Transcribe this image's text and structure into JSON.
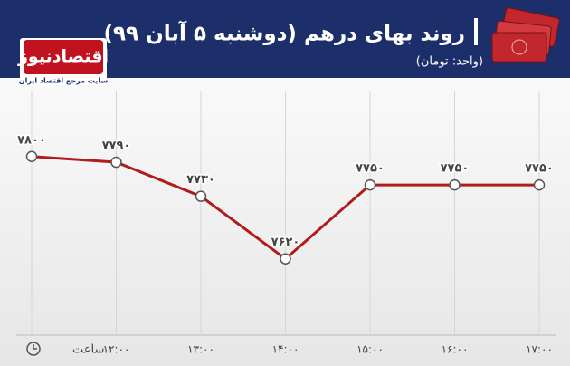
{
  "chart_data": {
    "type": "line",
    "title": "روند بهای درهم (دوشنبه ۵ آبان ۹۹)",
    "subtitle": "(واحد: تومان)",
    "brand": "اقتصادنیوز",
    "brand_tagline": "سایت مرجع اقتصاد ایران",
    "x_label": "ساعت",
    "categories": [
      null,
      "۱۲:۰۰",
      "۱۳:۰۰",
      "۱۴:۰۰",
      "۱۵:۰۰",
      "۱۶:۰۰",
      "۱۷:۰۰"
    ],
    "values": [
      7800,
      7790,
      7730,
      7620,
      7750,
      7750,
      7750
    ],
    "value_labels": [
      "۷۸۰۰",
      "۷۷۹۰",
      "۷۷۳۰",
      "۷۶۲۰",
      "۷۷۵۰",
      "۷۷۵۰",
      "۷۷۵۰"
    ],
    "color": "#b01c1c",
    "ylim": [
      7500,
      7900
    ],
    "grid": true
  }
}
